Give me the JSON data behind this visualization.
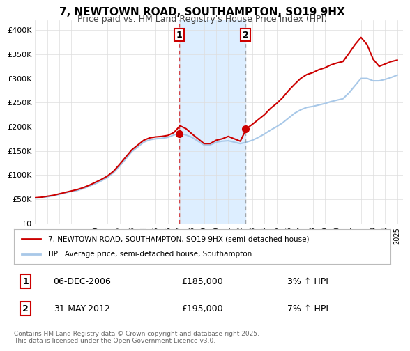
{
  "title": "7, NEWTOWN ROAD, SOUTHAMPTON, SO19 9HX",
  "subtitle": "Price paid vs. HM Land Registry's House Price Index (HPI)",
  "xlabel": "",
  "ylabel": "",
  "xlim": [
    1995,
    2025.5
  ],
  "ylim": [
    0,
    420000
  ],
  "yticks": [
    0,
    50000,
    100000,
    150000,
    200000,
    250000,
    300000,
    350000,
    400000
  ],
  "ytick_labels": [
    "£0",
    "£50K",
    "£100K",
    "£150K",
    "£200K",
    "£250K",
    "£300K",
    "£350K",
    "£400K"
  ],
  "xticks": [
    1995,
    1996,
    1997,
    1998,
    1999,
    2000,
    2001,
    2002,
    2003,
    2004,
    2005,
    2006,
    2007,
    2008,
    2009,
    2010,
    2011,
    2012,
    2013,
    2014,
    2015,
    2016,
    2017,
    2018,
    2019,
    2020,
    2021,
    2022,
    2023,
    2024,
    2025
  ],
  "hpi_color": "#a8c8e8",
  "price_color": "#cc0000",
  "marker1_x": 2006.92,
  "marker1_y": 185000,
  "marker2_x": 2012.42,
  "marker2_y": 195000,
  "marker1_label": "06-DEC-2006",
  "marker1_price": "£185,000",
  "marker1_hpi": "3% ↑ HPI",
  "marker2_label": "31-MAY-2012",
  "marker2_price": "£195,000",
  "marker2_hpi": "7% ↑ HPI",
  "shade_color": "#ddeeff",
  "vline1_x": 2006.92,
  "vline2_x": 2012.42,
  "legend_label_price": "7, NEWTOWN ROAD, SOUTHAMPTON, SO19 9HX (semi-detached house)",
  "legend_label_hpi": "HPI: Average price, semi-detached house, Southampton",
  "footnote": "Contains HM Land Registry data © Crown copyright and database right 2025.\nThis data is licensed under the Open Government Licence v3.0.",
  "background_color": "#f8f8f8"
}
